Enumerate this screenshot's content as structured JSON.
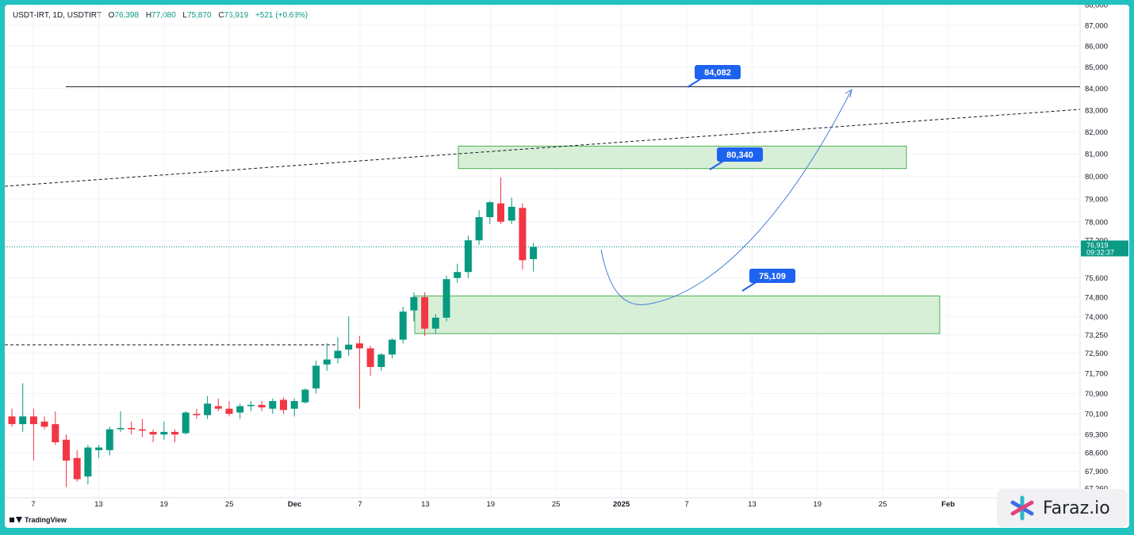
{
  "header": {
    "symbol": "USDT-IRT, 1D, USDTIRT",
    "open_label": "O",
    "open": "76,398",
    "high_label": "H",
    "high": "77,080",
    "low_label": "L",
    "low": "75,870",
    "close_label": "C",
    "close": "76,919",
    "change": "+521 (+0.68%)"
  },
  "price_badge": {
    "price": "76,919",
    "countdown": "09:32:37"
  },
  "footer": {
    "tradingview": "TradingView",
    "brand": "Faraz.io"
  },
  "colors": {
    "up": "#089981",
    "down": "#f23645",
    "zone_fill": "#d7efd7",
    "zone_stroke": "#4caf50",
    "label_bg": "#1e62f0",
    "arrow": "#4a7fd8",
    "last_price": "#0b9a86"
  },
  "chart_data": {
    "type": "candlestick",
    "title": "USDT-IRT, 1D, USDTIRT",
    "y_axis": {
      "ticks": [
        "88,000",
        "87,000",
        "86,000",
        "85,000",
        "84,000",
        "83,000",
        "82,000",
        "81,000",
        "80,000",
        "79,000",
        "78,000",
        "77,200",
        "76,919",
        "75,600",
        "74,800",
        "74,000",
        "73,250",
        "72,500",
        "71,700",
        "70,900",
        "70,100",
        "69,300",
        "68,600",
        "67,900",
        "67,260"
      ],
      "scale": "log",
      "range": [
        67260,
        88000
      ]
    },
    "x_axis": {
      "ticks": [
        "7",
        "13",
        "19",
        "25",
        "Dec",
        "7",
        "13",
        "19",
        "25",
        "2025",
        "7",
        "13",
        "19",
        "25",
        "Feb"
      ]
    },
    "candles": [
      {
        "d": "Nov 5",
        "o": 70000,
        "h": 70300,
        "l": 69600,
        "c": 69700
      },
      {
        "d": "Nov 6",
        "o": 69700,
        "h": 71300,
        "l": 69400,
        "c": 70000
      },
      {
        "d": "Nov 7",
        "o": 70000,
        "h": 70300,
        "l": 68300,
        "c": 69700
      },
      {
        "d": "Nov 8",
        "o": 69800,
        "h": 70000,
        "l": 69500,
        "c": 69600
      },
      {
        "d": "Nov 9",
        "o": 69700,
        "h": 70200,
        "l": 68900,
        "c": 69000
      },
      {
        "d": "Nov 10",
        "o": 69100,
        "h": 69300,
        "l": 67300,
        "c": 68300
      },
      {
        "d": "Nov 11",
        "o": 68400,
        "h": 68700,
        "l": 67500,
        "c": 67600
      },
      {
        "d": "Nov 12",
        "o": 67700,
        "h": 68900,
        "l": 67400,
        "c": 68800
      },
      {
        "d": "Nov 13",
        "o": 68700,
        "h": 68900,
        "l": 68400,
        "c": 68800
      },
      {
        "d": "Nov 14",
        "o": 68700,
        "h": 69600,
        "l": 68500,
        "c": 69500
      },
      {
        "d": "Nov 15",
        "o": 69500,
        "h": 70200,
        "l": 69400,
        "c": 69550
      },
      {
        "d": "Nov 16",
        "o": 69550,
        "h": 69800,
        "l": 69300,
        "c": 69500
      },
      {
        "d": "Nov 17",
        "o": 69500,
        "h": 69900,
        "l": 69200,
        "c": 69450
      },
      {
        "d": "Nov 18",
        "o": 69400,
        "h": 69500,
        "l": 69000,
        "c": 69300
      },
      {
        "d": "Nov 19",
        "o": 69300,
        "h": 69800,
        "l": 69100,
        "c": 69400
      },
      {
        "d": "Nov 20",
        "o": 69400,
        "h": 69500,
        "l": 69000,
        "c": 69300
      },
      {
        "d": "Nov 21",
        "o": 69350,
        "h": 70200,
        "l": 69300,
        "c": 70150
      },
      {
        "d": "Nov 22",
        "o": 70100,
        "h": 70300,
        "l": 69900,
        "c": 70050
      },
      {
        "d": "Nov 23",
        "o": 70050,
        "h": 70800,
        "l": 69900,
        "c": 70500
      },
      {
        "d": "Nov 24",
        "o": 70400,
        "h": 70700,
        "l": 70200,
        "c": 70300
      },
      {
        "d": "Nov 25",
        "o": 70300,
        "h": 70600,
        "l": 70000,
        "c": 70100
      },
      {
        "d": "Nov 26",
        "o": 70150,
        "h": 70500,
        "l": 69900,
        "c": 70400
      },
      {
        "d": "Nov 27",
        "o": 70400,
        "h": 70600,
        "l": 70200,
        "c": 70450
      },
      {
        "d": "Nov 28",
        "o": 70450,
        "h": 70600,
        "l": 70200,
        "c": 70350
      },
      {
        "d": "Nov 29",
        "o": 70300,
        "h": 70700,
        "l": 70100,
        "c": 70600
      },
      {
        "d": "Nov 30",
        "o": 70650,
        "h": 70750,
        "l": 70100,
        "c": 70250
      },
      {
        "d": "Dec 1",
        "o": 70300,
        "h": 70700,
        "l": 70000,
        "c": 70600
      },
      {
        "d": "Dec 2",
        "o": 70550,
        "h": 71100,
        "l": 70500,
        "c": 71050
      },
      {
        "d": "Dec 3",
        "o": 71100,
        "h": 72200,
        "l": 70900,
        "c": 72000
      },
      {
        "d": "Dec 4",
        "o": 72050,
        "h": 72900,
        "l": 71800,
        "c": 72250
      },
      {
        "d": "Dec 5",
        "o": 72300,
        "h": 73150,
        "l": 72100,
        "c": 72600
      },
      {
        "d": "Dec 6",
        "o": 72650,
        "h": 74000,
        "l": 72400,
        "c": 72850
      },
      {
        "d": "Dec 7",
        "o": 72900,
        "h": 73200,
        "l": 70300,
        "c": 72700
      },
      {
        "d": "Dec 8",
        "o": 72700,
        "h": 72800,
        "l": 71600,
        "c": 71950
      },
      {
        "d": "Dec 9",
        "o": 71950,
        "h": 72500,
        "l": 71800,
        "c": 72450
      },
      {
        "d": "Dec 10",
        "o": 72450,
        "h": 73100,
        "l": 72300,
        "c": 73050
      },
      {
        "d": "Dec 11",
        "o": 73050,
        "h": 74400,
        "l": 72900,
        "c": 74200
      },
      {
        "d": "Dec 12",
        "o": 74250,
        "h": 75000,
        "l": 73800,
        "c": 74800
      },
      {
        "d": "Dec 13",
        "o": 74800,
        "h": 75000,
        "l": 73200,
        "c": 73500
      },
      {
        "d": "Dec 14",
        "o": 73500,
        "h": 74100,
        "l": 73300,
        "c": 73950
      },
      {
        "d": "Dec 15",
        "o": 73950,
        "h": 75700,
        "l": 73800,
        "c": 75550
      },
      {
        "d": "Dec 16",
        "o": 75600,
        "h": 76200,
        "l": 75400,
        "c": 75850
      },
      {
        "d": "Dec 17",
        "o": 75850,
        "h": 77400,
        "l": 75600,
        "c": 77200
      },
      {
        "d": "Dec 18",
        "o": 77200,
        "h": 78500,
        "l": 77000,
        "c": 78200
      },
      {
        "d": "Dec 19",
        "o": 78200,
        "h": 78900,
        "l": 77900,
        "c": 78850
      },
      {
        "d": "Dec 20",
        "o": 78800,
        "h": 79950,
        "l": 77900,
        "c": 78000
      },
      {
        "d": "Dec 21",
        "o": 78050,
        "h": 79050,
        "l": 77900,
        "c": 78650
      },
      {
        "d": "Dec 22",
        "o": 78600,
        "h": 78800,
        "l": 75950,
        "c": 76350
      },
      {
        "d": "Dec 23",
        "o": 76398,
        "h": 77080,
        "l": 75870,
        "c": 76919
      }
    ],
    "levels": [
      {
        "label": "84,082",
        "value": 84082,
        "style": "solid"
      }
    ],
    "zones": [
      {
        "label": "80,340",
        "from": 80340,
        "to": 81350
      },
      {
        "label": "75,109",
        "from": 73300,
        "to": 74850
      }
    ],
    "last_price": 76919
  }
}
